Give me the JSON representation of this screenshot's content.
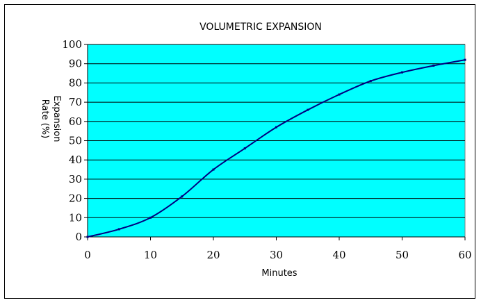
{
  "chart_data": {
    "type": "line",
    "title": "VOLUMETRIC EXPANSION",
    "xlabel": "Minutes",
    "ylabel_line1": "Expansion",
    "ylabel_line2": "Rate  (%)",
    "xlim": [
      0,
      60
    ],
    "ylim": [
      0,
      100
    ],
    "x_ticks": [
      0,
      10,
      20,
      30,
      40,
      50,
      60
    ],
    "y_ticks": [
      0,
      10,
      20,
      30,
      40,
      50,
      60,
      70,
      80,
      90,
      100
    ],
    "grid": "horizontal",
    "legend": "none",
    "series": [
      {
        "x": [
          0,
          5,
          10,
          15,
          20,
          25,
          30,
          35,
          40,
          45,
          50,
          55,
          60
        ],
        "values": [
          0,
          4,
          10,
          21,
          35,
          46,
          57,
          66,
          74,
          81,
          85.5,
          89,
          92
        ]
      }
    ],
    "colors": {
      "plot_background": "#00ffff",
      "line": "#000080",
      "grid": "#000000"
    }
  }
}
